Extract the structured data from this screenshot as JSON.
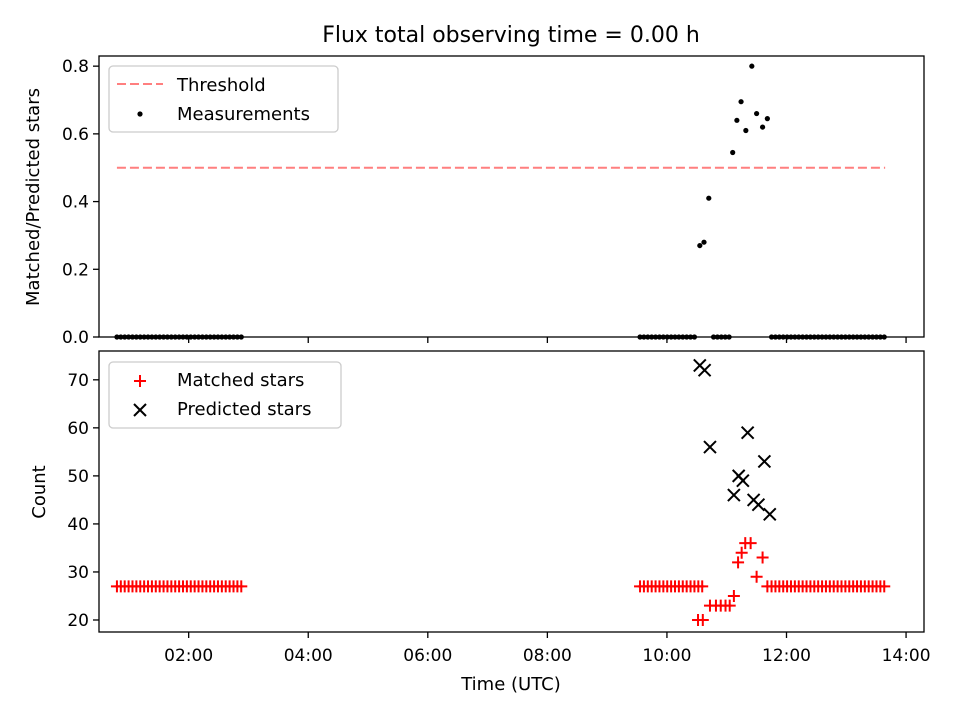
{
  "figure": {
    "title": "Flux total observing time = 0.00 h"
  },
  "chart_data": [
    {
      "type": "scatter",
      "panel": "top",
      "ylabel": "Matched/Predicted stars",
      "ylim": [
        0,
        0.83
      ],
      "yticks": [
        0.0,
        0.2,
        0.4,
        0.6,
        0.8
      ],
      "ytick_labels": [
        "0.0",
        "0.2",
        "0.4",
        "0.6",
        "0.8"
      ],
      "xlim_hours": [
        0.5,
        14.3
      ],
      "legend_position": "top-left",
      "grid": false,
      "threshold": {
        "name": "Threshold",
        "value": 0.5,
        "x_range_hours": [
          0.8,
          13.65
        ],
        "color": "#ff7f7f",
        "style": "dashed"
      },
      "series": [
        {
          "name": "Measurements",
          "marker": "dot",
          "color": "#000000",
          "points": [
            {
              "x": 10.55,
              "y": 0.27
            },
            {
              "x": 10.62,
              "y": 0.28
            },
            {
              "x": 10.7,
              "y": 0.41
            },
            {
              "x": 11.1,
              "y": 0.545
            },
            {
              "x": 11.17,
              "y": 0.64
            },
            {
              "x": 11.24,
              "y": 0.695
            },
            {
              "x": 11.32,
              "y": 0.61
            },
            {
              "x": 11.42,
              "y": 0.8
            },
            {
              "x": 11.5,
              "y": 0.66
            },
            {
              "x": 11.6,
              "y": 0.62
            },
            {
              "x": 11.68,
              "y": 0.645
            }
          ],
          "zero_ranges_hours": [
            [
              0.8,
              2.9,
              0.065
            ],
            [
              9.55,
              10.5,
              0.065
            ],
            [
              10.78,
              11.05,
              0.065
            ],
            [
              11.75,
              13.65,
              0.065
            ]
          ]
        }
      ]
    },
    {
      "type": "scatter",
      "panel": "bottom",
      "ylabel": "Count",
      "xlabel": "Time (UTC)",
      "ylim": [
        17.5,
        76
      ],
      "yticks": [
        20,
        30,
        40,
        50,
        60,
        70
      ],
      "ytick_labels": [
        "20",
        "30",
        "40",
        "50",
        "60",
        "70"
      ],
      "xlim_hours": [
        0.5,
        14.3
      ],
      "xticks_hours": [
        2,
        4,
        6,
        8,
        10,
        12,
        14
      ],
      "xtick_labels": [
        "02:00",
        "04:00",
        "06:00",
        "08:00",
        "10:00",
        "12:00",
        "14:00"
      ],
      "legend_position": "top-left",
      "grid": false,
      "series": [
        {
          "name": "Matched stars",
          "marker": "plus",
          "color": "#ff0000",
          "constant_ranges_hours": [
            [
              0.8,
              2.9,
              0.065,
              27
            ],
            [
              9.55,
              10.65,
              0.065,
              27
            ],
            [
              11.75,
              13.65,
              0.065,
              27
            ]
          ],
          "points": [
            {
              "x": 10.52,
              "y": 20
            },
            {
              "x": 10.6,
              "y": 20
            },
            {
              "x": 10.72,
              "y": 23
            },
            {
              "x": 10.82,
              "y": 23
            },
            {
              "x": 10.9,
              "y": 23
            },
            {
              "x": 10.98,
              "y": 23
            },
            {
              "x": 11.05,
              "y": 23
            },
            {
              "x": 11.12,
              "y": 25
            },
            {
              "x": 11.19,
              "y": 32
            },
            {
              "x": 11.25,
              "y": 34
            },
            {
              "x": 11.31,
              "y": 36
            },
            {
              "x": 11.4,
              "y": 36
            },
            {
              "x": 11.5,
              "y": 29
            },
            {
              "x": 11.6,
              "y": 33
            },
            {
              "x": 11.68,
              "y": 27
            }
          ]
        },
        {
          "name": "Predicted stars",
          "marker": "x",
          "color": "#000000",
          "points": [
            {
              "x": 10.55,
              "y": 73
            },
            {
              "x": 10.63,
              "y": 72
            },
            {
              "x": 10.72,
              "y": 56
            },
            {
              "x": 11.12,
              "y": 46
            },
            {
              "x": 11.2,
              "y": 50
            },
            {
              "x": 11.27,
              "y": 49
            },
            {
              "x": 11.35,
              "y": 59
            },
            {
              "x": 11.45,
              "y": 45
            },
            {
              "x": 11.53,
              "y": 44
            },
            {
              "x": 11.63,
              "y": 53
            },
            {
              "x": 11.72,
              "y": 42
            }
          ]
        }
      ]
    }
  ]
}
